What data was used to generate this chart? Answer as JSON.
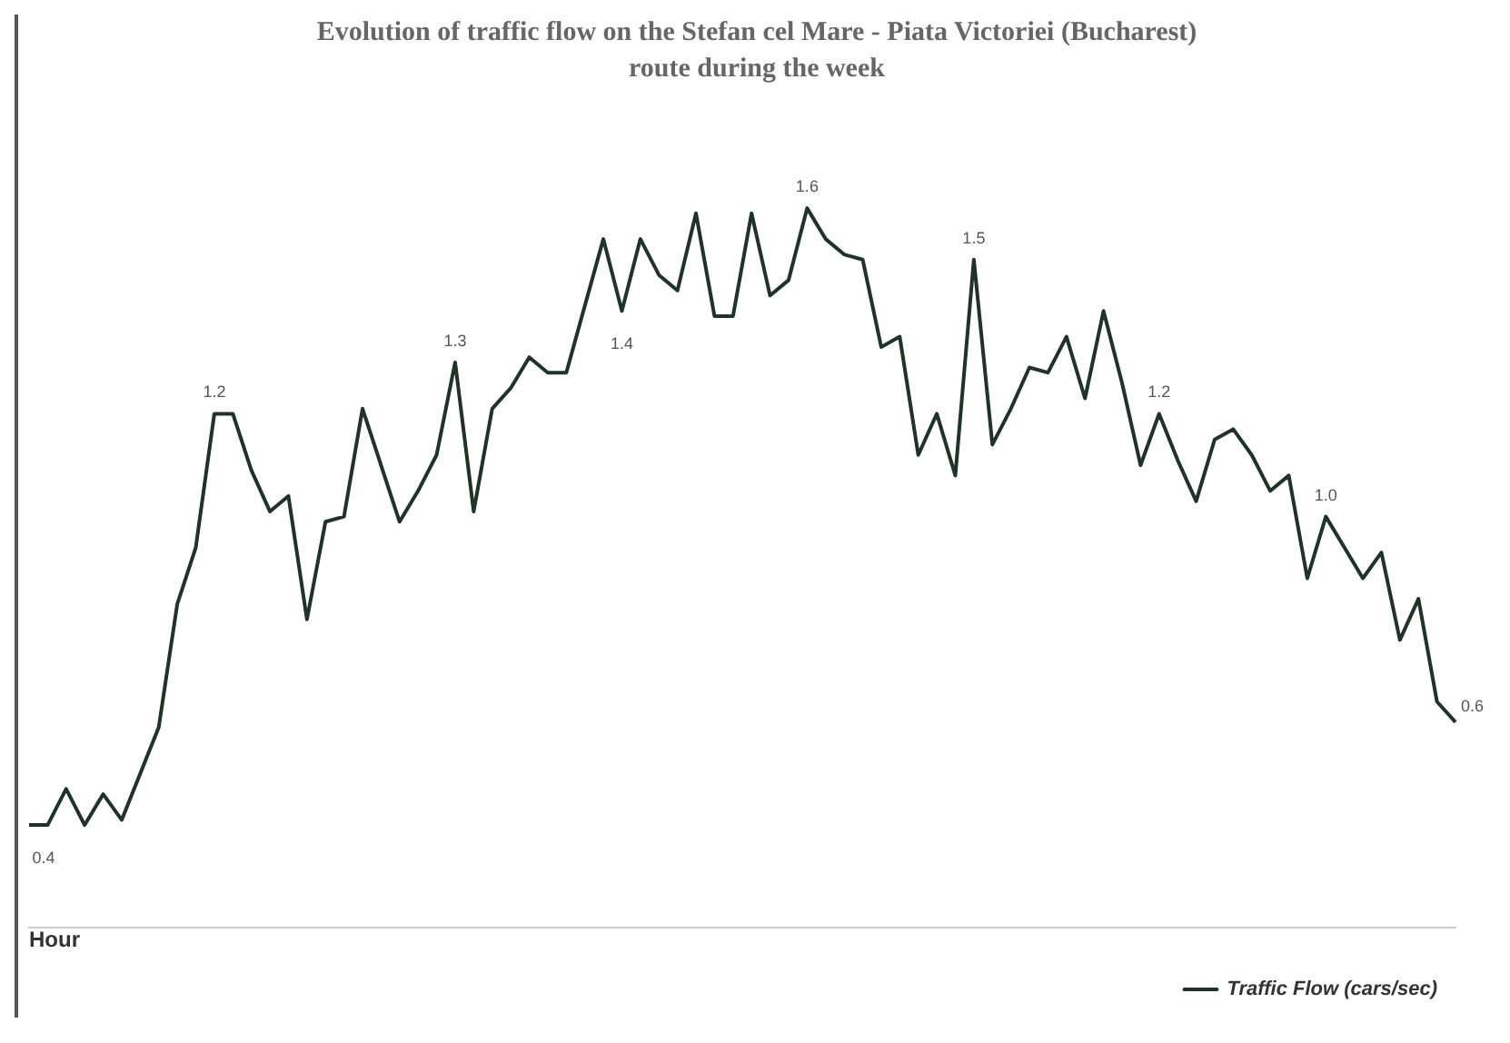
{
  "chart_data": {
    "type": "line",
    "title": "Evolution of traffic flow on the Stefan cel Mare - Piata Victoriei (Bucharest) route during the week",
    "xlabel": "Hour",
    "categories": [
      null,
      null,
      null,
      null,
      null,
      null,
      null,
      null,
      null,
      null,
      null,
      null,
      null,
      null,
      null,
      null,
      null,
      null,
      null,
      null,
      null,
      null,
      null,
      null,
      null,
      null,
      null,
      null,
      null,
      null,
      null,
      null,
      null,
      null,
      null,
      null,
      null,
      null,
      null,
      null,
      null,
      null,
      null,
      null,
      null,
      null,
      null,
      null,
      null,
      null,
      null,
      null,
      null,
      null,
      null,
      null,
      null,
      null,
      null,
      null,
      null,
      null,
      null,
      null,
      null,
      null,
      null,
      null,
      null,
      null,
      null,
      null,
      null,
      null,
      null,
      null,
      null,
      null
    ],
    "series": [
      {
        "name": "Traffic Flow (cars/sec)",
        "color": "#1f3327",
        "values": [
          0.4,
          0.4,
          0.47,
          0.4,
          0.46,
          0.41,
          0.5,
          0.59,
          0.83,
          0.94,
          1.2,
          1.2,
          1.09,
          1.01,
          1.04,
          0.8,
          0.99,
          1.0,
          1.21,
          1.1,
          0.99,
          1.05,
          1.12,
          1.3,
          1.01,
          1.21,
          1.25,
          1.31,
          1.28,
          1.28,
          1.41,
          1.54,
          1.4,
          1.54,
          1.47,
          1.44,
          1.59,
          1.39,
          1.39,
          1.59,
          1.43,
          1.46,
          1.6,
          1.54,
          1.51,
          1.5,
          1.33,
          1.35,
          1.12,
          1.2,
          1.08,
          1.5,
          1.14,
          1.21,
          1.29,
          1.28,
          1.35,
          1.23,
          1.4,
          1.26,
          1.1,
          1.2,
          1.11,
          1.03,
          1.15,
          1.17,
          1.12,
          1.05,
          1.08,
          0.88,
          1.0,
          0.94,
          0.88,
          0.93,
          0.76,
          0.84,
          0.64,
          0.6
        ],
        "value_labels": [
          "0.4",
          null,
          null,
          null,
          null,
          null,
          null,
          null,
          null,
          null,
          "1.2",
          null,
          null,
          null,
          null,
          null,
          null,
          null,
          null,
          null,
          null,
          null,
          null,
          "1.3",
          null,
          null,
          null,
          null,
          null,
          null,
          null,
          null,
          "1.4",
          null,
          null,
          null,
          null,
          null,
          null,
          null,
          null,
          null,
          "1.6",
          null,
          null,
          null,
          null,
          null,
          null,
          null,
          null,
          "1.5",
          null,
          null,
          null,
          null,
          null,
          null,
          null,
          null,
          null,
          "1.2",
          null,
          null,
          null,
          null,
          null,
          null,
          null,
          null,
          "1.0",
          null,
          null,
          null,
          null,
          null,
          null,
          "0.6"
        ]
      }
    ],
    "legend": "bottom right",
    "marker": "none",
    "line_style": "solid",
    "grid": false
  }
}
